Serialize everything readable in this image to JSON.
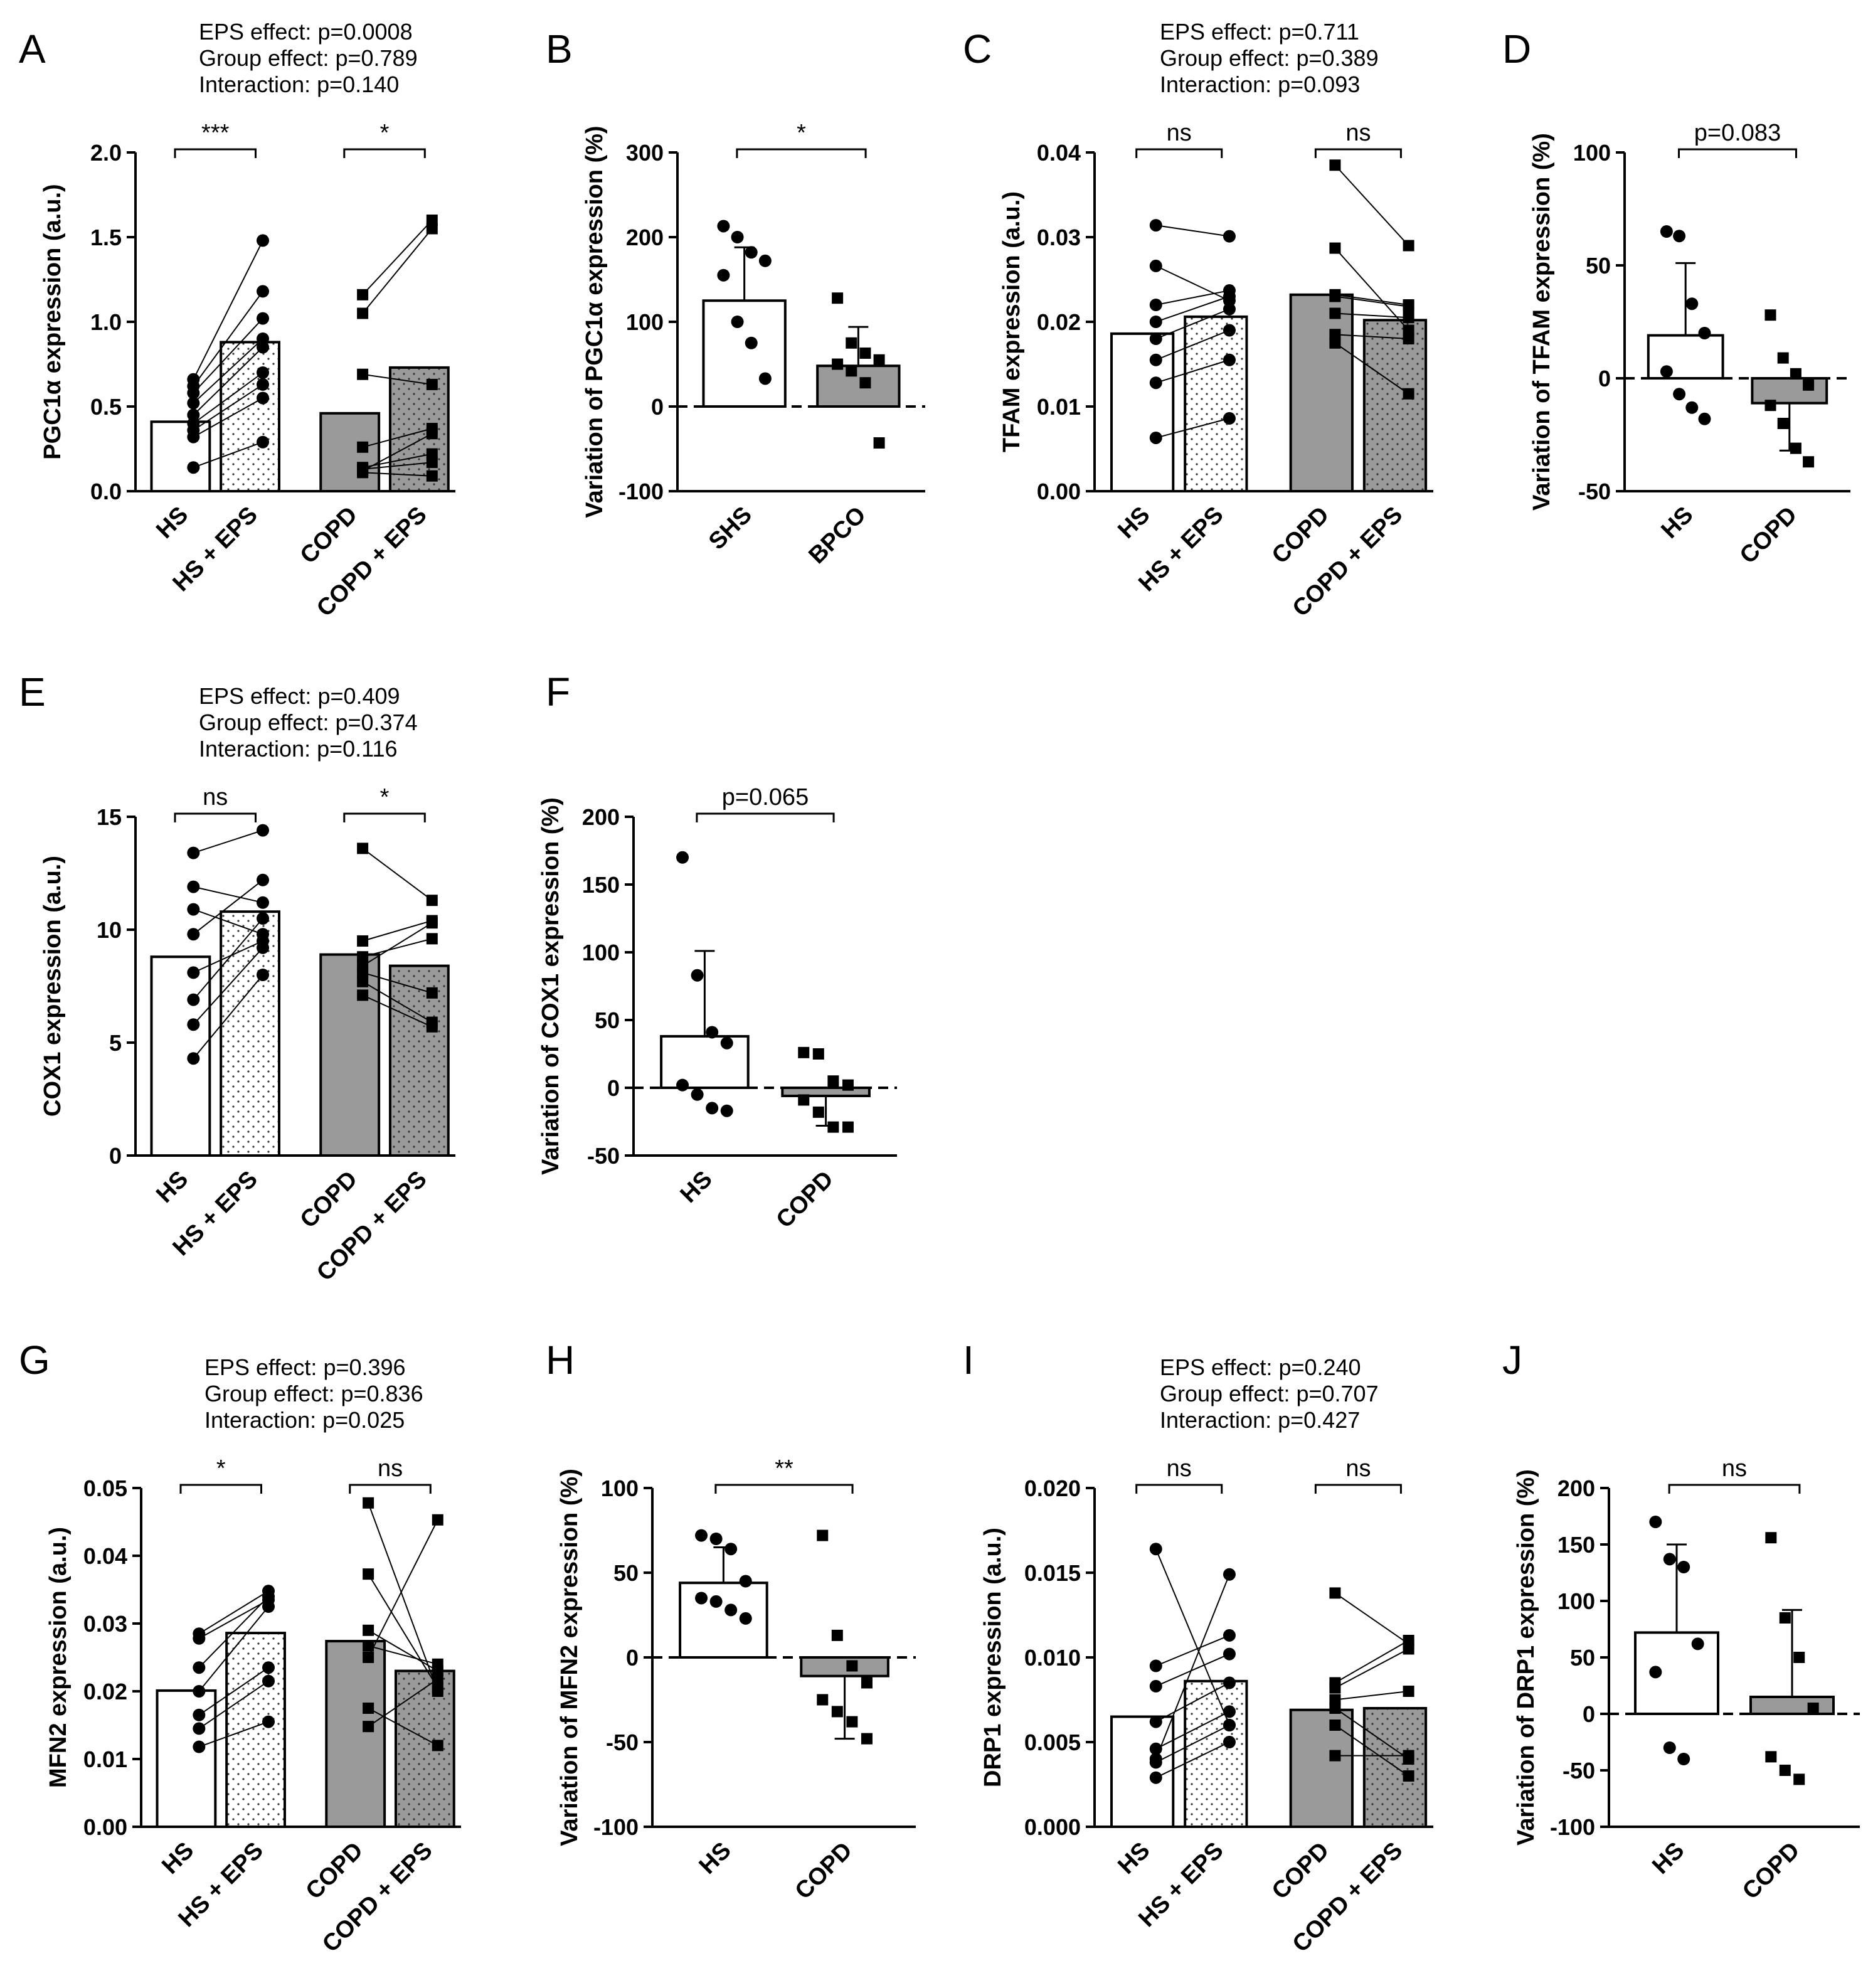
{
  "colors": {
    "ink": "#000000",
    "grey_fill": "#9a9a9a",
    "white_fill": "#ffffff"
  },
  "chart_data": [
    {
      "panel": "A",
      "type": "bar",
      "paired": true,
      "ylabel": "PGC1α expression (a.u.)",
      "ylim": [
        0,
        2.0
      ],
      "yticks": [
        0,
        0.5,
        1.0,
        1.5,
        2.0
      ],
      "ytick_labels": [
        "0.0",
        "0.5",
        "1.0",
        "1.5",
        "2.0"
      ],
      "categories": [
        "HS",
        "HS + EPS",
        "COPD",
        "COPD + EPS"
      ],
      "bar_values": [
        0.41,
        0.88,
        0.46,
        0.73
      ],
      "stats": [
        "EPS effect: p=0.0008",
        "Group effect: p=0.789",
        "Interaction: p=0.140"
      ],
      "comparisons": [
        {
          "from": 0,
          "to": 1,
          "label": "***"
        },
        {
          "from": 2,
          "to": 3,
          "label": "*"
        }
      ],
      "pairs": [
        {
          "from": 0,
          "to": 1,
          "values": [
            [
              0.14,
              0.29
            ],
            [
              0.32,
              0.55
            ],
            [
              0.36,
              0.63
            ],
            [
              0.4,
              0.7
            ],
            [
              0.45,
              0.85
            ],
            [
              0.52,
              0.9
            ],
            [
              0.58,
              1.02
            ],
            [
              0.62,
              1.18
            ],
            [
              0.66,
              1.48
            ]
          ]
        },
        {
          "from": 2,
          "to": 3,
          "values": [
            [
              0.11,
              0.09
            ],
            [
              0.13,
              0.17
            ],
            [
              0.14,
              0.22
            ],
            [
              0.26,
              0.37
            ],
            [
              0.12,
              0.34
            ],
            [
              0.69,
              0.63
            ],
            [
              1.05,
              1.55
            ],
            [
              1.16,
              1.6
            ]
          ]
        }
      ]
    },
    {
      "panel": "B",
      "type": "bar",
      "ylabel": "Variation of PGC1α expression (%)",
      "ylim": [
        -100,
        300
      ],
      "yticks": [
        -100,
        0,
        100,
        200,
        300
      ],
      "ytick_labels": [
        "-100",
        "0",
        "100",
        "200",
        "300"
      ],
      "categories": [
        "SHS",
        "BPCO"
      ],
      "bar_values": [
        125,
        48
      ],
      "errors": [
        63,
        46
      ],
      "comparisons": [
        {
          "from": 0,
          "to": 1,
          "label": "*"
        }
      ],
      "points": [
        [
          213,
          200,
          182,
          172,
          155,
          100,
          75,
          33
        ],
        [
          128,
          75,
          63,
          55,
          50,
          42,
          28,
          -43
        ]
      ]
    },
    {
      "panel": "C",
      "type": "bar",
      "paired": true,
      "ylabel": "TFAM expression (a.u.)",
      "ylim": [
        0,
        0.04
      ],
      "yticks": [
        0,
        0.01,
        0.02,
        0.03,
        0.04
      ],
      "ytick_labels": [
        "0.00",
        "0.01",
        "0.02",
        "0.03",
        "0.04"
      ],
      "categories": [
        "HS",
        "HS + EPS",
        "COPD",
        "COPD + EPS"
      ],
      "bar_values": [
        0.0186,
        0.0206,
        0.0232,
        0.0202
      ],
      "stats": [
        "EPS effect: p=0.711",
        "Group effect: p=0.389",
        "Interaction: p=0.093"
      ],
      "comparisons": [
        {
          "from": 0,
          "to": 1,
          "label": "ns"
        },
        {
          "from": 2,
          "to": 3,
          "label": "ns"
        }
      ],
      "pairs": [
        {
          "from": 0,
          "to": 1,
          "values": [
            [
              0.0063,
              0.0086
            ],
            [
              0.0128,
              0.0155
            ],
            [
              0.0155,
              0.019
            ],
            [
              0.018,
              0.0215
            ],
            [
              0.02,
              0.023
            ],
            [
              0.022,
              0.0237
            ],
            [
              0.0266,
              0.0225
            ],
            [
              0.0314,
              0.0301
            ]
          ]
        },
        {
          "from": 2,
          "to": 3,
          "values": [
            [
              0.0175,
              0.0115
            ],
            [
              0.0185,
              0.018
            ],
            [
              0.021,
              0.0205
            ],
            [
              0.023,
              0.0218
            ],
            [
              0.0232,
              0.022
            ],
            [
              0.0287,
              0.019
            ],
            [
              0.0385,
              0.029
            ]
          ]
        }
      ]
    },
    {
      "panel": "D",
      "type": "bar",
      "ylabel": "Variation of TFAM expression (%)",
      "ylim": [
        -50,
        100
      ],
      "yticks": [
        -50,
        0,
        50,
        100
      ],
      "ytick_labels": [
        "-50",
        "0",
        "50",
        "100"
      ],
      "categories": [
        "HS",
        "COPD"
      ],
      "bar_values": [
        19,
        -11
      ],
      "errors": [
        32,
        21
      ],
      "comparisons": [
        {
          "from": 0,
          "to": 1,
          "label": "p=0.083"
        }
      ],
      "points": [
        [
          65,
          63,
          33,
          20,
          3,
          -7,
          -13,
          -18
        ],
        [
          28,
          9,
          2,
          -3,
          -12,
          -20,
          -31,
          -37
        ]
      ]
    },
    {
      "panel": "E",
      "type": "bar",
      "paired": true,
      "ylabel": "COX1 expression (a.u.)",
      "ylim": [
        0,
        15
      ],
      "yticks": [
        0,
        5,
        10,
        15
      ],
      "ytick_labels": [
        "0",
        "5",
        "10",
        "15"
      ],
      "categories": [
        "HS",
        "HS + EPS",
        "COPD",
        "COPD + EPS"
      ],
      "bar_values": [
        8.8,
        10.8,
        8.9,
        8.4
      ],
      "stats": [
        "EPS effect: p=0.409",
        "Group effect: p=0.374",
        "Interaction: p=0.116"
      ],
      "comparisons": [
        {
          "from": 0,
          "to": 1,
          "label": "ns"
        },
        {
          "from": 2,
          "to": 3,
          "label": "*"
        }
      ],
      "pairs": [
        {
          "from": 0,
          "to": 1,
          "values": [
            [
              4.3,
              8.0
            ],
            [
              5.8,
              9.2
            ],
            [
              6.9,
              10.5
            ],
            [
              8.1,
              9.5
            ],
            [
              9.8,
              12.2
            ],
            [
              10.9,
              9.8
            ],
            [
              11.9,
              11.2
            ],
            [
              13.4,
              14.4
            ]
          ]
        },
        {
          "from": 2,
          "to": 3,
          "values": [
            [
              7.1,
              5.7
            ],
            [
              7.7,
              5.9
            ],
            [
              8.1,
              7.2
            ],
            [
              8.4,
              10.3
            ],
            [
              8.8,
              9.6
            ],
            [
              9.5,
              10.4
            ],
            [
              13.6,
              11.3
            ]
          ]
        }
      ]
    },
    {
      "panel": "F",
      "type": "bar",
      "ylabel": "Variation of COX1 expression (%)",
      "ylim": [
        -50,
        200
      ],
      "yticks": [
        -50,
        0,
        50,
        100,
        150,
        200
      ],
      "ytick_labels": [
        "-50",
        "0",
        "50",
        "100",
        "150",
        "200"
      ],
      "categories": [
        "HS",
        "COPD"
      ],
      "bar_values": [
        38,
        -6
      ],
      "errors": [
        63,
        22
      ],
      "comparisons": [
        {
          "from": 0,
          "to": 1,
          "label": "p=0.065"
        }
      ],
      "points": [
        [
          170,
          83,
          41,
          33,
          2,
          -5,
          -15,
          -17
        ],
        [
          26,
          25,
          5,
          2,
          -9,
          -18,
          -29,
          -29
        ]
      ]
    },
    {
      "panel": "G",
      "type": "bar",
      "paired": true,
      "ylabel": "MFN2 expression (a.u.)",
      "ylim": [
        0,
        0.05
      ],
      "yticks": [
        0,
        0.01,
        0.02,
        0.03,
        0.04,
        0.05
      ],
      "ytick_labels": [
        "0.00",
        "0.01",
        "0.02",
        "0.03",
        "0.04",
        "0.05"
      ],
      "categories": [
        "HS",
        "HS + EPS",
        "COPD",
        "COPD + EPS"
      ],
      "bar_values": [
        0.0201,
        0.0286,
        0.0274,
        0.023
      ],
      "stats": [
        "EPS effect: p=0.396",
        "Group effect: p=0.836",
        "Interaction: p=0.025"
      ],
      "comparisons": [
        {
          "from": 0,
          "to": 1,
          "label": "*"
        },
        {
          "from": 2,
          "to": 3,
          "label": "ns"
        }
      ],
      "pairs": [
        {
          "from": 0,
          "to": 1,
          "values": [
            [
              0.0118,
              0.0155
            ],
            [
              0.0145,
              0.0215
            ],
            [
              0.0165,
              0.0235
            ],
            [
              0.02,
              0.0325
            ],
            [
              0.0235,
              0.034
            ],
            [
              0.0278,
              0.0335
            ],
            [
              0.0285,
              0.0348
            ]
          ]
        },
        {
          "from": 2,
          "to": 3,
          "values": [
            [
              0.0148,
              0.0218
            ],
            [
              0.0175,
              0.012
            ],
            [
              0.025,
              0.0453
            ],
            [
              0.0267,
              0.024
            ],
            [
              0.029,
              0.023
            ],
            [
              0.0373,
              0.0205
            ],
            [
              0.0478,
              0.02
            ]
          ]
        }
      ]
    },
    {
      "panel": "H",
      "type": "bar",
      "ylabel": "Variation of MFN2 expression (%)",
      "ylim": [
        -100,
        100
      ],
      "yticks": [
        -100,
        -50,
        0,
        50,
        100
      ],
      "ytick_labels": [
        "-100",
        "-50",
        "0",
        "50",
        "100"
      ],
      "categories": [
        "HS",
        "COPD"
      ],
      "bar_values": [
        44,
        -11
      ],
      "errors": [
        21,
        37
      ],
      "comparisons": [
        {
          "from": 0,
          "to": 1,
          "label": "**"
        }
      ],
      "points": [
        [
          72,
          70,
          64,
          45,
          35,
          33,
          28,
          23
        ],
        [
          72,
          13,
          -5,
          -15,
          -25,
          -32,
          -38,
          -48
        ]
      ]
    },
    {
      "panel": "I",
      "type": "bar",
      "paired": true,
      "ylabel": "DRP1 expression (a.u.)",
      "ylim": [
        0,
        0.02
      ],
      "yticks": [
        0,
        0.005,
        0.01,
        0.015,
        0.02
      ],
      "ytick_labels": [
        "0.000",
        "0.005",
        "0.010",
        "0.015",
        "0.020"
      ],
      "categories": [
        "HS",
        "HS + EPS",
        "COPD",
        "COPD + EPS"
      ],
      "bar_values": [
        0.0065,
        0.0086,
        0.0069,
        0.007
      ],
      "stats": [
        "EPS effect: p=0.240",
        "Group effect: p=0.707",
        "Interaction: p=0.427"
      ],
      "comparisons": [
        {
          "from": 0,
          "to": 1,
          "label": "ns"
        },
        {
          "from": 2,
          "to": 3,
          "label": "ns"
        }
      ],
      "pairs": [
        {
          "from": 0,
          "to": 1,
          "values": [
            [
              0.0029,
              0.005
            ],
            [
              0.0038,
              0.006
            ],
            [
              0.0046,
              0.0068
            ],
            [
              0.0062,
              0.0085
            ],
            [
              0.0083,
              0.0102
            ],
            [
              0.0095,
              0.0113
            ],
            [
              0.0164,
              0.006
            ],
            [
              0.004,
              0.0149
            ]
          ]
        },
        {
          "from": 2,
          "to": 3,
          "values": [
            [
              0.0042,
              0.0042
            ],
            [
              0.006,
              0.003
            ],
            [
              0.007,
              0.004
            ],
            [
              0.0075,
              0.008
            ],
            [
              0.0082,
              0.0105
            ],
            [
              0.0085,
              0.011
            ],
            [
              0.0138,
              0.0108
            ]
          ]
        }
      ]
    },
    {
      "panel": "J",
      "type": "bar",
      "ylabel": "Variation of DRP1 expression (%)",
      "ylim": [
        -100,
        200
      ],
      "yticks": [
        -100,
        -50,
        0,
        50,
        100,
        150,
        200
      ],
      "ytick_labels": [
        "-100",
        "-50",
        "0",
        "50",
        "100",
        "150",
        "200"
      ],
      "categories": [
        "HS",
        "COPD"
      ],
      "bar_values": [
        72,
        15
      ],
      "errors": [
        78,
        77
      ],
      "comparisons": [
        {
          "from": 0,
          "to": 1,
          "label": "ns"
        }
      ],
      "points": [
        [
          170,
          137,
          130,
          62,
          37,
          -30,
          -40
        ],
        [
          156,
          85,
          50,
          5,
          -38,
          -50,
          -58
        ]
      ]
    }
  ]
}
